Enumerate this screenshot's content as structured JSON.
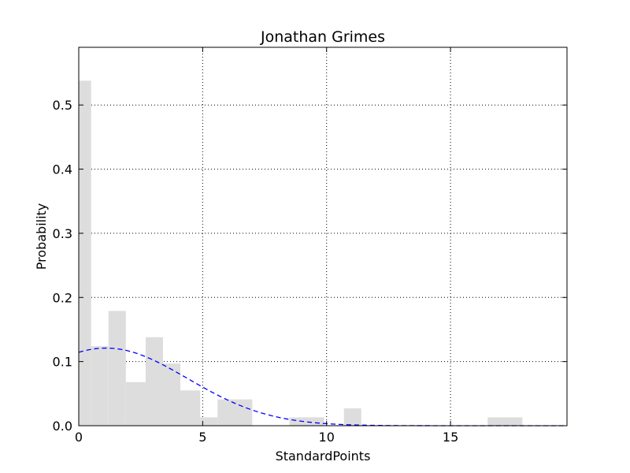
{
  "chart_data": {
    "type": "bar",
    "title": "Jonathan Grimes",
    "xlabel": "StandardPoints",
    "ylabel": "Probability",
    "xlim": [
      0,
      19.7
    ],
    "ylim": [
      0,
      0.59
    ],
    "grid": true,
    "xticks": [
      {
        "value": 0,
        "label": "0"
      },
      {
        "value": 5,
        "label": "5"
      },
      {
        "value": 10,
        "label": "10"
      },
      {
        "value": 15,
        "label": "15"
      }
    ],
    "yticks": [
      {
        "value": 0.0,
        "label": "0.0"
      },
      {
        "value": 0.1,
        "label": "0.1"
      },
      {
        "value": 0.2,
        "label": "0.2"
      },
      {
        "value": 0.3,
        "label": "0.3"
      },
      {
        "value": 0.4,
        "label": "0.4"
      },
      {
        "value": 0.5,
        "label": "0.5"
      }
    ],
    "bar_color": "#dddddd",
    "curve_color": "#0000ff",
    "bins": [
      {
        "x0": 0.0,
        "x1": 0.5,
        "value": 0.538
      },
      {
        "x0": 0.5,
        "x1": 1.2,
        "value": 0.124
      },
      {
        "x0": 1.2,
        "x1": 1.9,
        "value": 0.179
      },
      {
        "x0": 1.9,
        "x1": 2.7,
        "value": 0.068
      },
      {
        "x0": 2.7,
        "x1": 3.4,
        "value": 0.138
      },
      {
        "x0": 3.4,
        "x1": 4.1,
        "value": 0.097
      },
      {
        "x0": 4.1,
        "x1": 4.9,
        "value": 0.055
      },
      {
        "x0": 4.9,
        "x1": 5.6,
        "value": 0.013
      },
      {
        "x0": 5.6,
        "x1": 7.0,
        "value": 0.041
      },
      {
        "x0": 8.5,
        "x1": 9.9,
        "value": 0.013
      },
      {
        "x0": 10.7,
        "x1": 11.4,
        "value": 0.027
      },
      {
        "x0": 16.5,
        "x1": 17.9,
        "value": 0.013
      }
    ],
    "curve": {
      "type": "normal-fit",
      "mean": 1.1,
      "std": 3.3,
      "amplitude": 0.121
    }
  }
}
